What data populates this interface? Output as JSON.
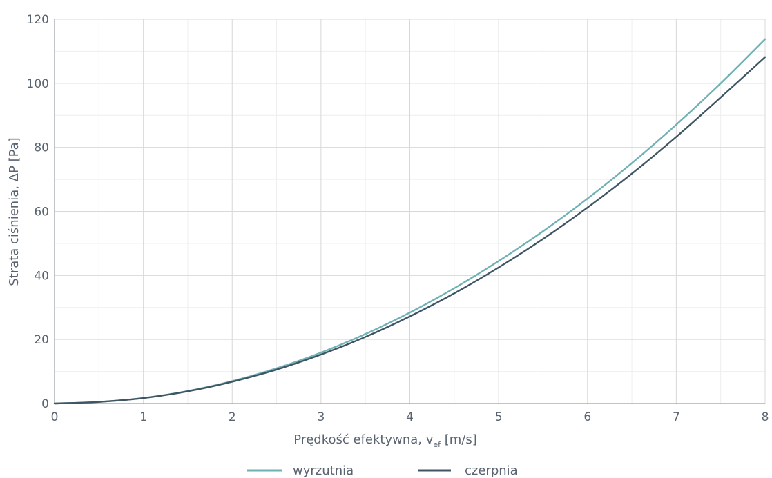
{
  "chart_data": {
    "type": "line",
    "title": "",
    "xlabel_main": "Prędkość efektywna, v",
    "xlabel_sub": "ef",
    "xlabel_unit": " [m/s]",
    "ylabel": "Strata ciśnienia, ΔP [Pa]",
    "xlim": [
      0,
      8
    ],
    "ylim": [
      0,
      120
    ],
    "x_ticks": [
      0,
      1,
      2,
      3,
      4,
      5,
      6,
      7,
      8
    ],
    "y_ticks": [
      0,
      20,
      40,
      60,
      80,
      100,
      120
    ],
    "x_tick_labels": [
      "0",
      "1",
      "2",
      "3",
      "4",
      "5",
      "6",
      "7",
      "8"
    ],
    "y_tick_labels": [
      "0",
      "20",
      "40",
      "60",
      "80",
      "100",
      "120"
    ],
    "grid": true,
    "legend_position": "bottom-center",
    "x": [
      0,
      0.5,
      1,
      1.5,
      2,
      2.5,
      3,
      3.5,
      4,
      4.5,
      5,
      5.5,
      6,
      6.5,
      7,
      7.5,
      8
    ],
    "series": [
      {
        "name": "wyrzutnia",
        "color": "#6fb1b4",
        "values": [
          0,
          0.5,
          1.7,
          3.9,
          7.0,
          11.0,
          15.9,
          21.7,
          28.4,
          36.0,
          44.5,
          53.8,
          64.0,
          75.1,
          87.1,
          100.0,
          113.8
        ]
      },
      {
        "name": "czerpnia",
        "color": "#3f5563",
        "values": [
          0,
          0.5,
          1.7,
          3.8,
          6.8,
          10.6,
          15.3,
          20.8,
          27.2,
          34.4,
          42.5,
          51.4,
          61.2,
          71.8,
          83.3,
          95.6,
          108.2
        ]
      }
    ]
  }
}
